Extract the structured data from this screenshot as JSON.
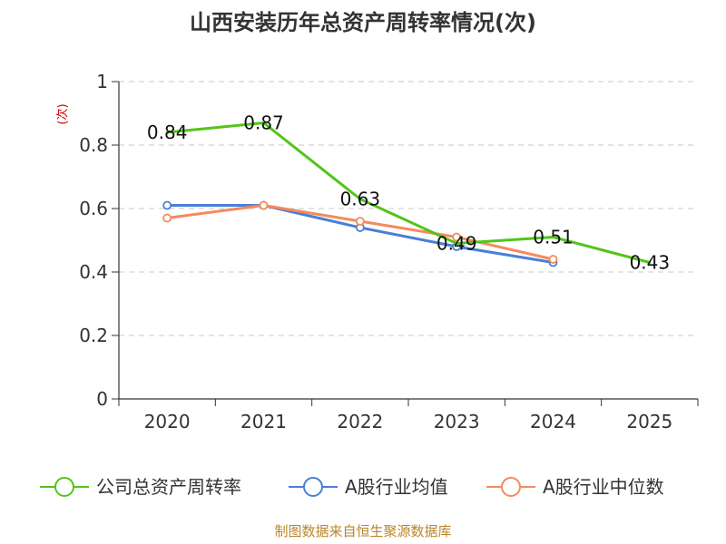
{
  "chart_data": {
    "type": "line",
    "title": "山西安装历年总资产周转率情况(次)",
    "ylabel": "(次)",
    "xlabel": "",
    "categories": [
      "2020",
      "2021",
      "2022",
      "2023",
      "2024",
      "2025"
    ],
    "ylim": [
      0,
      1
    ],
    "yticks": [
      "0",
      "0.2",
      "0.4",
      "0.6",
      "0.8",
      "1"
    ],
    "grid": true,
    "legend_position": "bottom",
    "series": [
      {
        "name": "公司总资产周转率",
        "color": "#52c41a",
        "values": [
          0.84,
          0.87,
          0.63,
          0.49,
          0.51,
          0.43
        ],
        "labels": [
          "0.84",
          "0.87",
          "0.63",
          "0.49",
          "0.51",
          "0.43"
        ],
        "show_markers": false
      },
      {
        "name": "A股行业均值",
        "color": "#4a7fd8",
        "values": [
          0.61,
          0.61,
          0.54,
          0.48,
          0.43,
          null
        ],
        "show_markers": true
      },
      {
        "name": "A股行业中位数",
        "color": "#f58a5c",
        "values": [
          0.57,
          0.61,
          0.56,
          0.51,
          0.44,
          null
        ],
        "show_markers": true
      }
    ],
    "source": "制图数据来自恒生聚源数据库"
  }
}
